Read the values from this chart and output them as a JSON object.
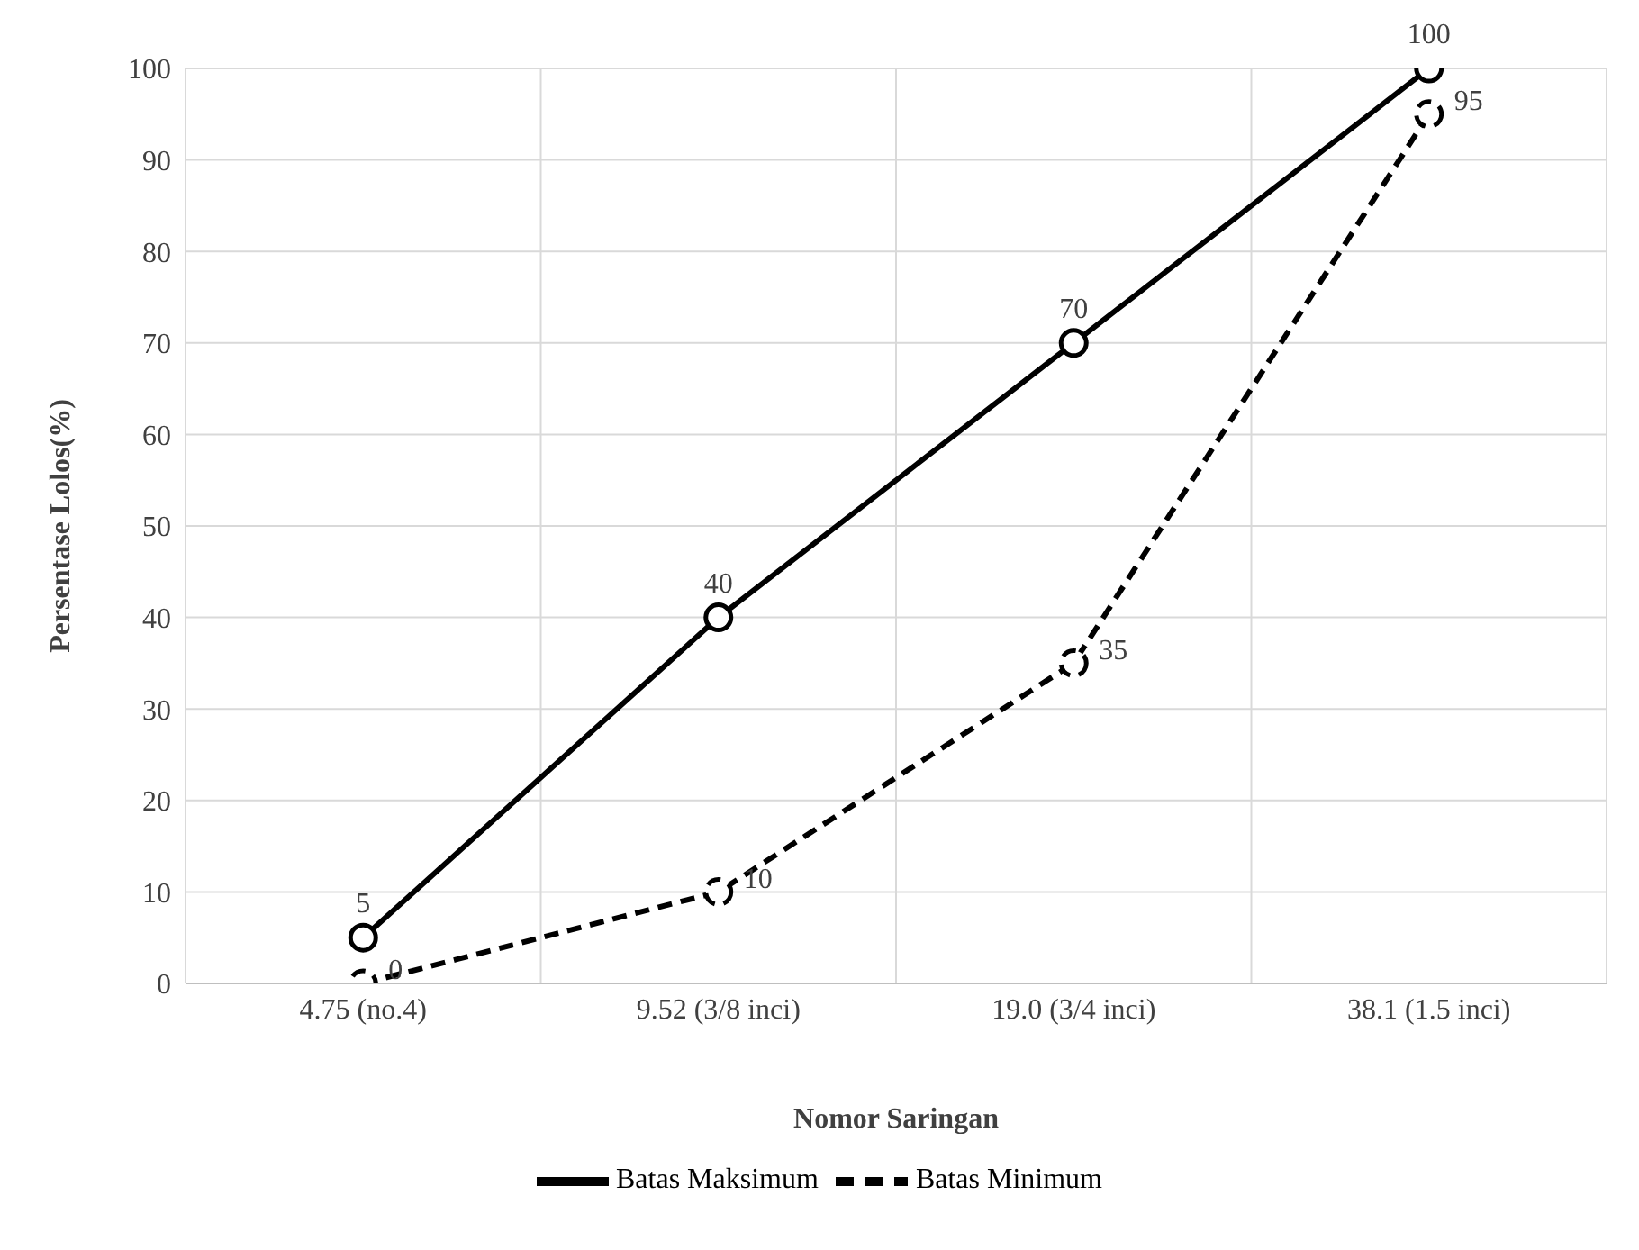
{
  "chart_data": {
    "type": "line",
    "xlabel": "Nomor Saringan",
    "ylabel": "Persentase Lolos(%)",
    "categories": [
      "4.75 (no.4)",
      "9.52 (3/8 inci)",
      "19.0 (3/4 inci)",
      "38.1 (1.5 inci)"
    ],
    "series": [
      {
        "name": "Batas Maksimum",
        "color": "#000000",
        "values": [
          5,
          40,
          70,
          100
        ],
        "line_style": "solid"
      },
      {
        "name": "Batas Minimum",
        "color": "#000000",
        "values": [
          0,
          10,
          35,
          95
        ],
        "line_style": "dashed"
      }
    ],
    "ylim": [
      0,
      100
    ],
    "yticks": [
      0,
      10,
      20,
      30,
      40,
      50,
      60,
      70,
      80,
      90,
      100
    ],
    "grid": true,
    "legend": "bottom",
    "marker": "circle",
    "data_labels": true
  }
}
